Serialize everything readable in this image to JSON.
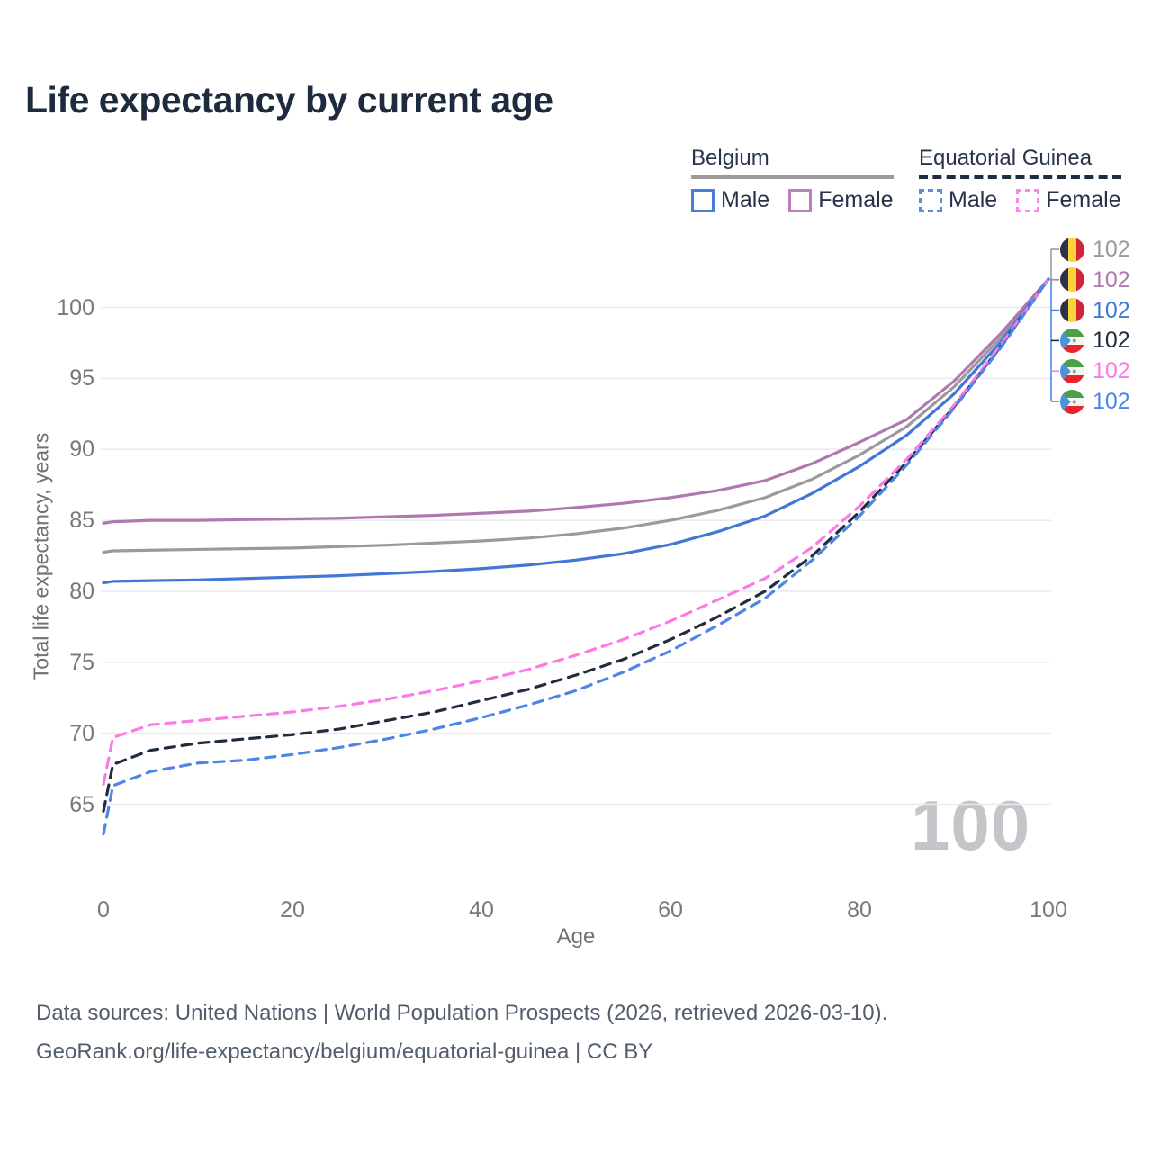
{
  "title": "Life expectancy by current age",
  "legend": {
    "groups": [
      {
        "title": "Belgium",
        "underline_style": "solid",
        "underline_color": "#9a9a9a",
        "items": [
          {
            "label": "Male",
            "color": "#4a7fd9",
            "box_style": "solid"
          },
          {
            "label": "Female",
            "color": "#bd7fbd",
            "box_style": "solid"
          }
        ]
      },
      {
        "title": "Equatorial Guinea",
        "underline_style": "dashed",
        "underline_color": "#1f2d3f",
        "items": [
          {
            "label": "Male",
            "color": "#5b8ae0",
            "box_style": "dashed"
          },
          {
            "label": "Female",
            "color": "#fb85e8",
            "box_style": "dashed"
          }
        ]
      }
    ]
  },
  "watermark": "100",
  "footer": {
    "line1": "Data sources: United Nations | World Population Prospects (2026, retrieved 2026-03-10).",
    "line2": "GeoRank.org/life-expectancy/belgium/equatorial-guinea | CC BY"
  },
  "chart_data": {
    "type": "line",
    "title": "Life expectancy by current age",
    "xlabel": "Age",
    "ylabel": "Total life expectancy, years",
    "xlim": [
      0,
      100
    ],
    "ylim": [
      62,
      103
    ],
    "x_ticks": [
      0,
      20,
      40,
      60,
      80,
      100
    ],
    "y_ticks": [
      65,
      70,
      75,
      80,
      85,
      90,
      95,
      100
    ],
    "grid": "horizontal",
    "legend_position": "top-right",
    "x": [
      0,
      1,
      5,
      10,
      15,
      20,
      25,
      30,
      35,
      40,
      45,
      50,
      55,
      60,
      65,
      70,
      75,
      80,
      85,
      90,
      95,
      100
    ],
    "series": [
      {
        "name": "Belgium (both sexes)",
        "country": "Belgium",
        "sex": "both",
        "line_style": "solid",
        "color": "#9a9a9a",
        "flag": "belgium",
        "end_label": "102",
        "values": [
          82.75,
          82.85,
          82.9,
          82.95,
          83.0,
          83.05,
          83.15,
          83.25,
          83.4,
          83.55,
          83.75,
          84.05,
          84.45,
          85.0,
          85.7,
          86.6,
          87.9,
          89.6,
          91.6,
          94.4,
          97.9,
          102
        ]
      },
      {
        "name": "Belgium Female",
        "country": "Belgium",
        "sex": "female",
        "line_style": "solid",
        "color": "#b078b0",
        "flag": "belgium",
        "end_label": "102",
        "values": [
          84.8,
          84.9,
          85.0,
          85.0,
          85.05,
          85.1,
          85.15,
          85.25,
          85.35,
          85.5,
          85.65,
          85.9,
          86.2,
          86.6,
          87.1,
          87.8,
          89.0,
          90.5,
          92.1,
          94.8,
          98.2,
          102
        ]
      },
      {
        "name": "Belgium Male",
        "country": "Belgium",
        "sex": "male",
        "line_style": "solid",
        "color": "#4377d6",
        "flag": "belgium",
        "end_label": "102",
        "values": [
          80.6,
          80.7,
          80.75,
          80.8,
          80.9,
          81.0,
          81.1,
          81.25,
          81.4,
          81.6,
          81.85,
          82.2,
          82.65,
          83.3,
          84.2,
          85.3,
          86.9,
          88.8,
          91.0,
          93.9,
          97.6,
          102
        ]
      },
      {
        "name": "Equatorial Guinea (both sexes)",
        "country": "Equatorial Guinea",
        "sex": "both",
        "line_style": "dashed",
        "color": "#1f2d3f",
        "flag": "equatorial-guinea",
        "end_label": "102",
        "values": [
          64.5,
          67.8,
          68.8,
          69.3,
          69.6,
          69.9,
          70.3,
          70.9,
          71.5,
          72.3,
          73.1,
          74.1,
          75.2,
          76.6,
          78.2,
          80.0,
          82.5,
          85.6,
          89.1,
          93.0,
          97.3,
          102
        ]
      },
      {
        "name": "Equatorial Guinea Female",
        "country": "Equatorial Guinea",
        "sex": "female",
        "line_style": "dashed",
        "color": "#fb7ae4",
        "flag": "equatorial-guinea",
        "end_label": "102",
        "values": [
          66.4,
          69.7,
          70.6,
          70.9,
          71.2,
          71.5,
          71.9,
          72.4,
          73.0,
          73.7,
          74.5,
          75.5,
          76.6,
          77.9,
          79.4,
          80.9,
          83.1,
          86.0,
          89.3,
          93.1,
          97.4,
          102
        ]
      },
      {
        "name": "Equatorial Guinea Male",
        "country": "Equatorial Guinea",
        "sex": "male",
        "line_style": "dashed",
        "color": "#4d85e8",
        "flag": "equatorial-guinea",
        "end_label": "102",
        "values": [
          62.9,
          66.3,
          67.3,
          67.9,
          68.1,
          68.5,
          69.0,
          69.6,
          70.3,
          71.1,
          72.0,
          73.0,
          74.3,
          75.8,
          77.6,
          79.5,
          82.2,
          85.3,
          88.9,
          92.9,
          97.2,
          102
        ]
      }
    ],
    "flag_colors": {
      "belgium": {
        "black": "#2d3147",
        "yellow": "#fbd33c",
        "red": "#d02535"
      },
      "equatorial_guinea": {
        "green": "#4aa146",
        "white": "#f4f5f1",
        "red": "#e8242c",
        "blue": "#4a93dd"
      }
    },
    "gridline_color": "#e9e9ee"
  }
}
